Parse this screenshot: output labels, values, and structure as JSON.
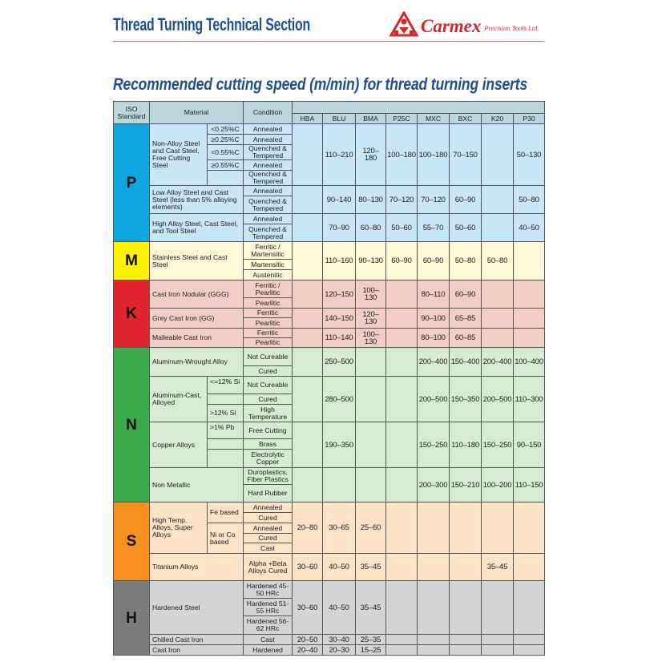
{
  "header": {
    "title": "Thread Turning Technical Section",
    "brand": "Carmex",
    "brand_sub": "Precision Tools Ltd.",
    "subtitle": "Recommended cutting speed (m/min) for thread turning inserts",
    "colors": {
      "title": "#1f4f8f",
      "brand": "#d7262b",
      "rule": "#e06060"
    }
  },
  "table": {
    "headers": {
      "iso": "ISO Standard",
      "material": "Material",
      "condition": "Condition"
    },
    "grades": [
      "HBA",
      "BLU",
      "BMA",
      "P25C",
      "MXC",
      "BXC",
      "K20",
      "P30"
    ],
    "sections": [
      {
        "iso": "P",
        "color": "#0fa6e0",
        "materials": [
          {
            "name": "Non-Alloy Steel and Cast Steel, Free Cutting Steel",
            "subs": [
              "<0.25%C",
              "≥0.25%C",
              "<0.55%C",
              "≥0.55%C",
              ""
            ],
            "conditions": [
              "Annealed",
              "Annealed",
              "Quenched & Tempered",
              "Annealed",
              "Quenched & Tempered"
            ],
            "values": [
              "",
              "110–210",
              "120–180",
              "100–180",
              "100–180",
              "70–150",
              "",
              "50–130"
            ]
          },
          {
            "name": "Low Alloy Steel and Cast Steel (less than 5% alloying elements)",
            "conditions": [
              "Annealed",
              "Quenched & Tempered"
            ],
            "values": [
              "",
              "90–140",
              "80–130",
              "70–120",
              "70–120",
              "60–90",
              "",
              "50–80"
            ]
          },
          {
            "name": "High Alloy Steel, Cast Steel, and Tool Steel",
            "conditions": [
              "Annealed",
              "Quenched & Tempered"
            ],
            "values": [
              "",
              "70–90",
              "60–80",
              "50–60",
              "55–70",
              "50–60",
              "",
              "40–50"
            ]
          }
        ]
      },
      {
        "iso": "M",
        "color": "#fff200",
        "materials": [
          {
            "name": "Stainless Steel and Cast Steel",
            "conditions": [
              "Ferritic / Martensitic",
              "Martensitic",
              "Austenitic"
            ],
            "values": [
              "",
              "110–160",
              "90–130",
              "60–90",
              "60–90",
              "50–80",
              "50–80",
              ""
            ]
          }
        ]
      },
      {
        "iso": "K",
        "color": "#e0252e",
        "materials": [
          {
            "name": "Cast Iron Nodular (GGG)",
            "conditions": [
              "Ferritic / Pearlitic",
              "Pearlitic"
            ],
            "values": [
              "",
              "120–150",
              "100–130",
              "",
              "80–110",
              "60–90",
              "",
              ""
            ]
          },
          {
            "name": "Grey Cast Iron (GG)",
            "conditions": [
              "Ferritic",
              "Pearlitic"
            ],
            "values": [
              "",
              "140–150",
              "120–130",
              "",
              "90–100",
              "65–85",
              "",
              ""
            ]
          },
          {
            "name": "Malleable Cast Iron",
            "conditions": [
              "Ferritic",
              "Pearlitic"
            ],
            "values": [
              "",
              "110–140",
              "100–130",
              "",
              "80–100",
              "60–85",
              "",
              ""
            ]
          }
        ]
      },
      {
        "iso": "N",
        "color": "#3aa94a",
        "materials": [
          {
            "name": "Aluminum-Wrought Alloy",
            "conditions": [
              "Not Cureable",
              "Cured"
            ],
            "values": [
              "",
              "250–500",
              "",
              "",
              "200–400",
              "150–400",
              "200–400",
              "100–400"
            ]
          },
          {
            "name": "Aluminum-Cast, Alloyed",
            "subs": [
              "<=12% Si",
              "",
              ">12% Si"
            ],
            "conditions": [
              "Not Cureable",
              "Cured",
              "High Temperature"
            ],
            "values": [
              "",
              "280–500",
              "",
              "",
              "200–500",
              "150–350",
              "200–500",
              "110–300"
            ]
          },
          {
            "name": "Copper Alloys",
            "subs": [
              ">1% Pb",
              "",
              ""
            ],
            "conditions": [
              "Free Cutting",
              "Brass",
              "Electrolytic Copper"
            ],
            "values": [
              "",
              "190–350",
              "",
              "",
              "150–250",
              "110–180",
              "150–250",
              "90–150"
            ]
          },
          {
            "name": "Non Metallic",
            "conditions": [
              "Duroplastics, Fiber Plastics",
              "Hard Rubber"
            ],
            "values": [
              "",
              "",
              "",
              "",
              "200–300",
              "150–210",
              "100–200",
              "110–150"
            ]
          }
        ]
      },
      {
        "iso": "S",
        "color": "#f7901f",
        "materials": [
          {
            "name": "High Temp. Alloys, Super Alloys",
            "subs": [
              "Fe based",
              "Ni or Co based"
            ],
            "conditions": [
              "Annealed",
              "Cured",
              "Annealed",
              "Cured",
              "Cast"
            ],
            "values": [
              "20–80",
              "30–65",
              "25–60",
              "",
              "",
              "",
              "",
              ""
            ]
          },
          {
            "name": "Titanium Alloys",
            "conditions": [
              "Alpha +Beta Alloys Cured"
            ],
            "values": [
              "30–60",
              "40–50",
              "35–45",
              "",
              "",
              "",
              "35–45",
              ""
            ]
          }
        ]
      },
      {
        "iso": "H",
        "color": "#7b7b7b",
        "materials": [
          {
            "name": "Hardened Steel",
            "conditions": [
              "Hardened 45-50 HRc",
              "Hardened 51-55 HRc",
              "Hardened 56-62 HRc"
            ],
            "values": [
              "30–60",
              "40–50",
              "35–45",
              "",
              "",
              "",
              "",
              ""
            ]
          },
          {
            "name": "Chilled Cast Iron",
            "conditions": [
              "Cast"
            ],
            "values": [
              "20–50",
              "30–40",
              "25–35",
              "",
              "",
              "",
              "",
              ""
            ]
          },
          {
            "name": "Cast Iron",
            "conditions": [
              "Hardened"
            ],
            "values": [
              "20–40",
              "20–30",
              "15–25",
              "",
              "",
              "",
              "",
              ""
            ]
          }
        ]
      }
    ]
  }
}
